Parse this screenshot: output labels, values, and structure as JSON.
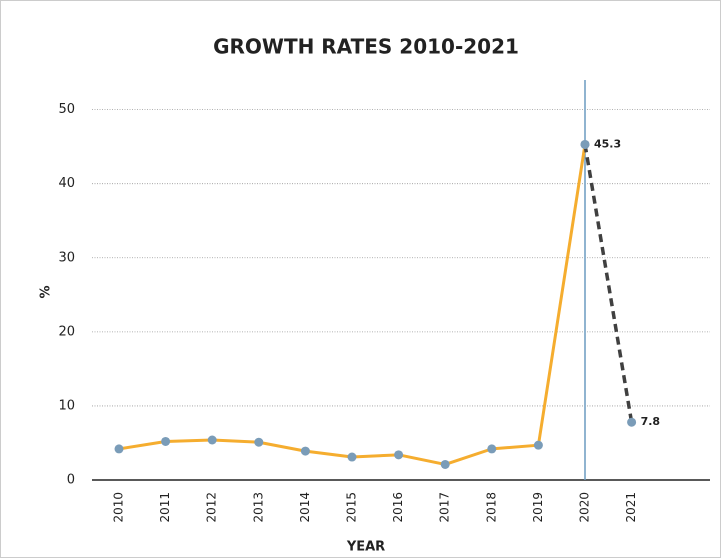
{
  "chart_data": {
    "type": "line",
    "title": "GROWTH RATES 2010-2021",
    "x_label": "YEAR",
    "y_label": "%",
    "categories": [
      "2010",
      "2011",
      "2012",
      "2013",
      "2014",
      "2015",
      "2016",
      "2017",
      "2018",
      "2019",
      "2020",
      "2021"
    ],
    "series": [
      {
        "color": "#f5ad2f",
        "dash": false,
        "values": [
          4.2,
          5.2,
          5.4,
          5.1,
          3.9,
          3.1,
          3.4,
          2.1,
          4.2,
          4.7,
          45.3,
          null
        ]
      },
      {
        "color": "#404040",
        "dash": true,
        "values": [
          null,
          null,
          null,
          null,
          null,
          null,
          null,
          null,
          null,
          null,
          45.3,
          7.8
        ],
        "labels": true
      }
    ],
    "marker_color": "#7a9cb8",
    "vline": "2020",
    "vline_color": "#6b9bc0",
    "ylim": [
      0,
      54
    ],
    "yticks": [
      0,
      10,
      20,
      30,
      40,
      50
    ],
    "grid": true
  }
}
